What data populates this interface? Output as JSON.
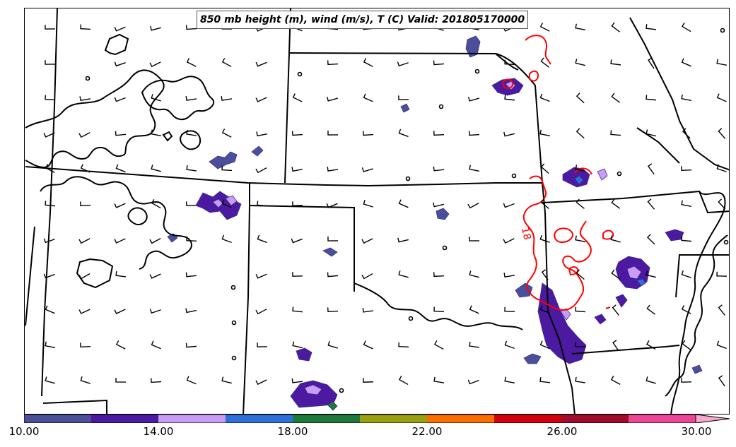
{
  "title": "850 mb height (m), wind (m/s), T (C) Valid: 201805170000",
  "contour_label": "18",
  "colorbar": {
    "colors": [
      "#4b4f9a",
      "#4c19a1",
      "#c89cf7",
      "#2e6ed7",
      "#1e7a3c",
      "#9aa012",
      "#fa6e00",
      "#d2000a",
      "#a00c2a",
      "#eb4698",
      "#f7a8cf"
    ],
    "tick_labels": [
      "10.00",
      "14.00",
      "18.00",
      "22.00",
      "26.00",
      "30.00"
    ]
  },
  "colors": {
    "boundary": "#000000",
    "temperature_contour": "#ff0000",
    "height_contour": "#000000"
  }
}
